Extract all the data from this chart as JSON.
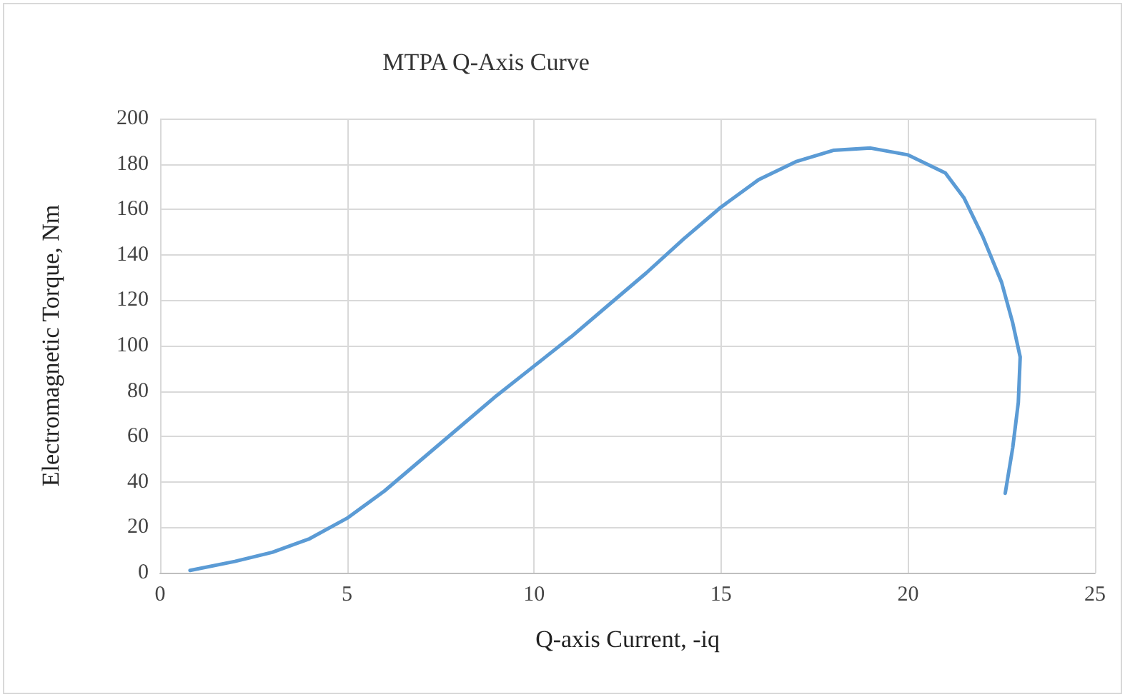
{
  "chart_data": {
    "type": "line",
    "title": "MTPA Q-Axis Curve",
    "xlabel": "Q-axis Current, -iq",
    "ylabel": "Electromagnetic Torque, Nm",
    "x": [
      0.8,
      2,
      3,
      4,
      5,
      6,
      7,
      8,
      9,
      10,
      11,
      12,
      13,
      14,
      15,
      16,
      17,
      18,
      19,
      20,
      21,
      21.5,
      22,
      22.5,
      22.8,
      23,
      22.95,
      22.8,
      22.7,
      22.6
    ],
    "series": [
      {
        "color": "#5b9bd5",
        "values": [
          1,
          5,
          9,
          15,
          24,
          36,
          50,
          64,
          78,
          91,
          104,
          118,
          132,
          147,
          161,
          173,
          181,
          186,
          187,
          184,
          176,
          165,
          148,
          128,
          110,
          95,
          75,
          55,
          45,
          35
        ]
      }
    ],
    "xlim": [
      0,
      25
    ],
    "xticks": [
      0,
      5,
      10,
      15,
      20,
      25
    ],
    "ylim": [
      0,
      200
    ],
    "yticks": [
      0,
      20,
      40,
      60,
      80,
      100,
      120,
      140,
      160,
      180,
      200
    ],
    "grid": true,
    "marker": "none",
    "line_style": "solid"
  }
}
